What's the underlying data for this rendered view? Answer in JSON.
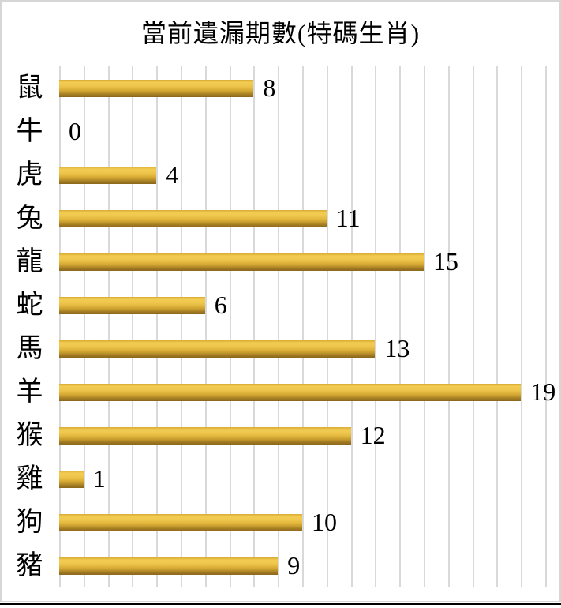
{
  "chart_data": {
    "type": "bar",
    "orientation": "horizontal",
    "title": "當前遺漏期數(特碼生肖)",
    "categories": [
      "鼠",
      "牛",
      "虎",
      "兔",
      "龍",
      "蛇",
      "馬",
      "羊",
      "猴",
      "雞",
      "狗",
      "豬"
    ],
    "values": [
      8,
      0,
      4,
      11,
      15,
      6,
      13,
      19,
      12,
      1,
      10,
      9
    ],
    "value_labels": [
      "8",
      "0",
      "4",
      "11",
      "15",
      "6",
      "13",
      "19",
      "12",
      "1",
      "10",
      "9"
    ],
    "xlabel": "",
    "ylabel": "",
    "xlim": [
      0,
      20
    ],
    "gridlines": "vertical, every 1 unit, 21 lines",
    "legend": "none",
    "colors": {
      "bar_top": "#d9ab32",
      "bar_highlight": "#f2cb53",
      "bar_mid": "#e2b63c",
      "bar_bottom": "#8a671c",
      "gridline": "#d9d9d9",
      "frame_border": "#d6d6d6",
      "bottom_rule": "#000000",
      "text": "#000000",
      "background": "#ffffff"
    }
  }
}
